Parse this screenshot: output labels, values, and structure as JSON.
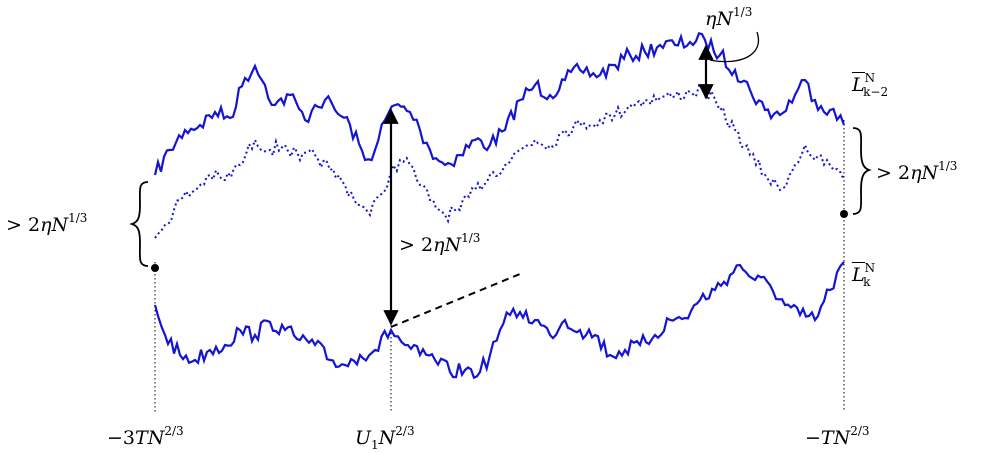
{
  "diagram": {
    "colors": {
      "curve": "#1414d2",
      "ink": "#000000"
    },
    "labels": {
      "x_left": {
        "prefix": "−3",
        "var": "TN",
        "exp": "2/3"
      },
      "x_mid": {
        "var": "U",
        "sub": "1",
        "var2": "N",
        "exp": "2/3"
      },
      "x_right": {
        "prefix": "−",
        "var": "TN",
        "exp": "2/3"
      },
      "curve_top": {
        "base": "L",
        "sub": "k−2",
        "sup": "N"
      },
      "curve_bottom": {
        "base": "L",
        "sub": "k",
        "sup": "N"
      },
      "gap_top": {
        "var": "ηN",
        "exp": "1/3"
      },
      "gap_left": {
        "prefix": "> 2",
        "var": "ηN",
        "exp": "1/3"
      },
      "gap_mid": {
        "prefix": "> 2",
        "var": "ηN",
        "exp": "1/3"
      },
      "gap_right": {
        "prefix": "> 2",
        "var": "ηN",
        "exp": "1/3"
      }
    }
  }
}
